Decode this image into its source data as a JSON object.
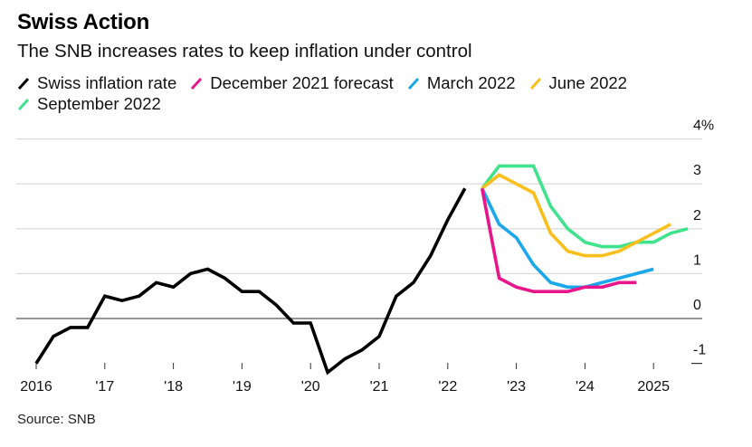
{
  "title": "Swiss Action",
  "subtitle": "The SNB increases rates to keep inflation under control",
  "source": "Source: SNB",
  "legend": [
    {
      "label": "Swiss inflation rate",
      "color": "#000000",
      "icon": "slash-line-icon"
    },
    {
      "label": "December 2021 forecast",
      "color": "#e8168a",
      "icon": "slash-line-icon"
    },
    {
      "label": "March 2022",
      "color": "#1aa7ec",
      "icon": "slash-line-icon"
    },
    {
      "label": "June 2022",
      "color": "#fbbf1c",
      "icon": "slash-line-icon"
    },
    {
      "label": "September 2022",
      "color": "#3fe38c",
      "icon": "slash-line-icon"
    }
  ],
  "chart_data": {
    "type": "line",
    "title": "Swiss Action",
    "subtitle": "The SNB increases rates to keep inflation under control",
    "xlabel": "",
    "ylabel": "",
    "ylim": [
      -1,
      4
    ],
    "xlim": [
      2016.0,
      2025.5
    ],
    "grid": true,
    "legend_position": "top",
    "y_axis_side": "right",
    "yticks": [
      {
        "value": 4,
        "label": "4%"
      },
      {
        "value": 3,
        "label": "3"
      },
      {
        "value": 2,
        "label": "2"
      },
      {
        "value": 1,
        "label": "1"
      },
      {
        "value": 0,
        "label": "0"
      },
      {
        "value": -1,
        "label": "-1"
      }
    ],
    "xticks": [
      {
        "value": 2016,
        "label": "2016"
      },
      {
        "value": 2017,
        "label": "'17"
      },
      {
        "value": 2018,
        "label": "'18"
      },
      {
        "value": 2019,
        "label": "'19"
      },
      {
        "value": 2020,
        "label": "'20"
      },
      {
        "value": 2021,
        "label": "'21"
      },
      {
        "value": 2022,
        "label": "'22"
      },
      {
        "value": 2023,
        "label": "'23"
      },
      {
        "value": 2024,
        "label": "'24"
      },
      {
        "value": 2025,
        "label": "2025"
      }
    ],
    "series": [
      {
        "name": "Swiss inflation rate",
        "color": "#000000",
        "x_start": 2016.0,
        "step": 0.25,
        "values": [
          -1.0,
          -0.4,
          -0.2,
          -0.2,
          0.5,
          0.4,
          0.5,
          0.8,
          0.7,
          1.0,
          1.1,
          0.9,
          0.6,
          0.6,
          0.3,
          -0.1,
          -0.1,
          -1.2,
          -0.9,
          -0.7,
          -0.4,
          0.5,
          0.8,
          1.4,
          2.2,
          2.9
        ]
      },
      {
        "name": "December 2021 forecast",
        "color": "#e8168a",
        "x_start": 2022.5,
        "step": 0.25,
        "values": [
          2.9,
          0.9,
          0.7,
          0.6,
          0.6,
          0.6,
          0.7,
          0.7,
          0.8,
          0.8
        ]
      },
      {
        "name": "March 2022",
        "color": "#1aa7ec",
        "x_start": 2022.5,
        "step": 0.25,
        "values": [
          2.9,
          2.1,
          1.8,
          1.2,
          0.8,
          0.7,
          0.7,
          0.8,
          0.9,
          1.0,
          1.1
        ]
      },
      {
        "name": "June 2022",
        "color": "#fbbf1c",
        "x_start": 2022.5,
        "step": 0.25,
        "values": [
          2.9,
          3.2,
          3.0,
          2.8,
          1.9,
          1.5,
          1.4,
          1.4,
          1.5,
          1.7,
          1.9,
          2.1
        ]
      },
      {
        "name": "September 2022",
        "color": "#3fe38c",
        "x_start": 2022.5,
        "step": 0.25,
        "values": [
          2.9,
          3.4,
          3.4,
          3.4,
          2.5,
          2.0,
          1.7,
          1.6,
          1.6,
          1.7,
          1.7,
          1.9,
          2.0
        ]
      }
    ]
  }
}
